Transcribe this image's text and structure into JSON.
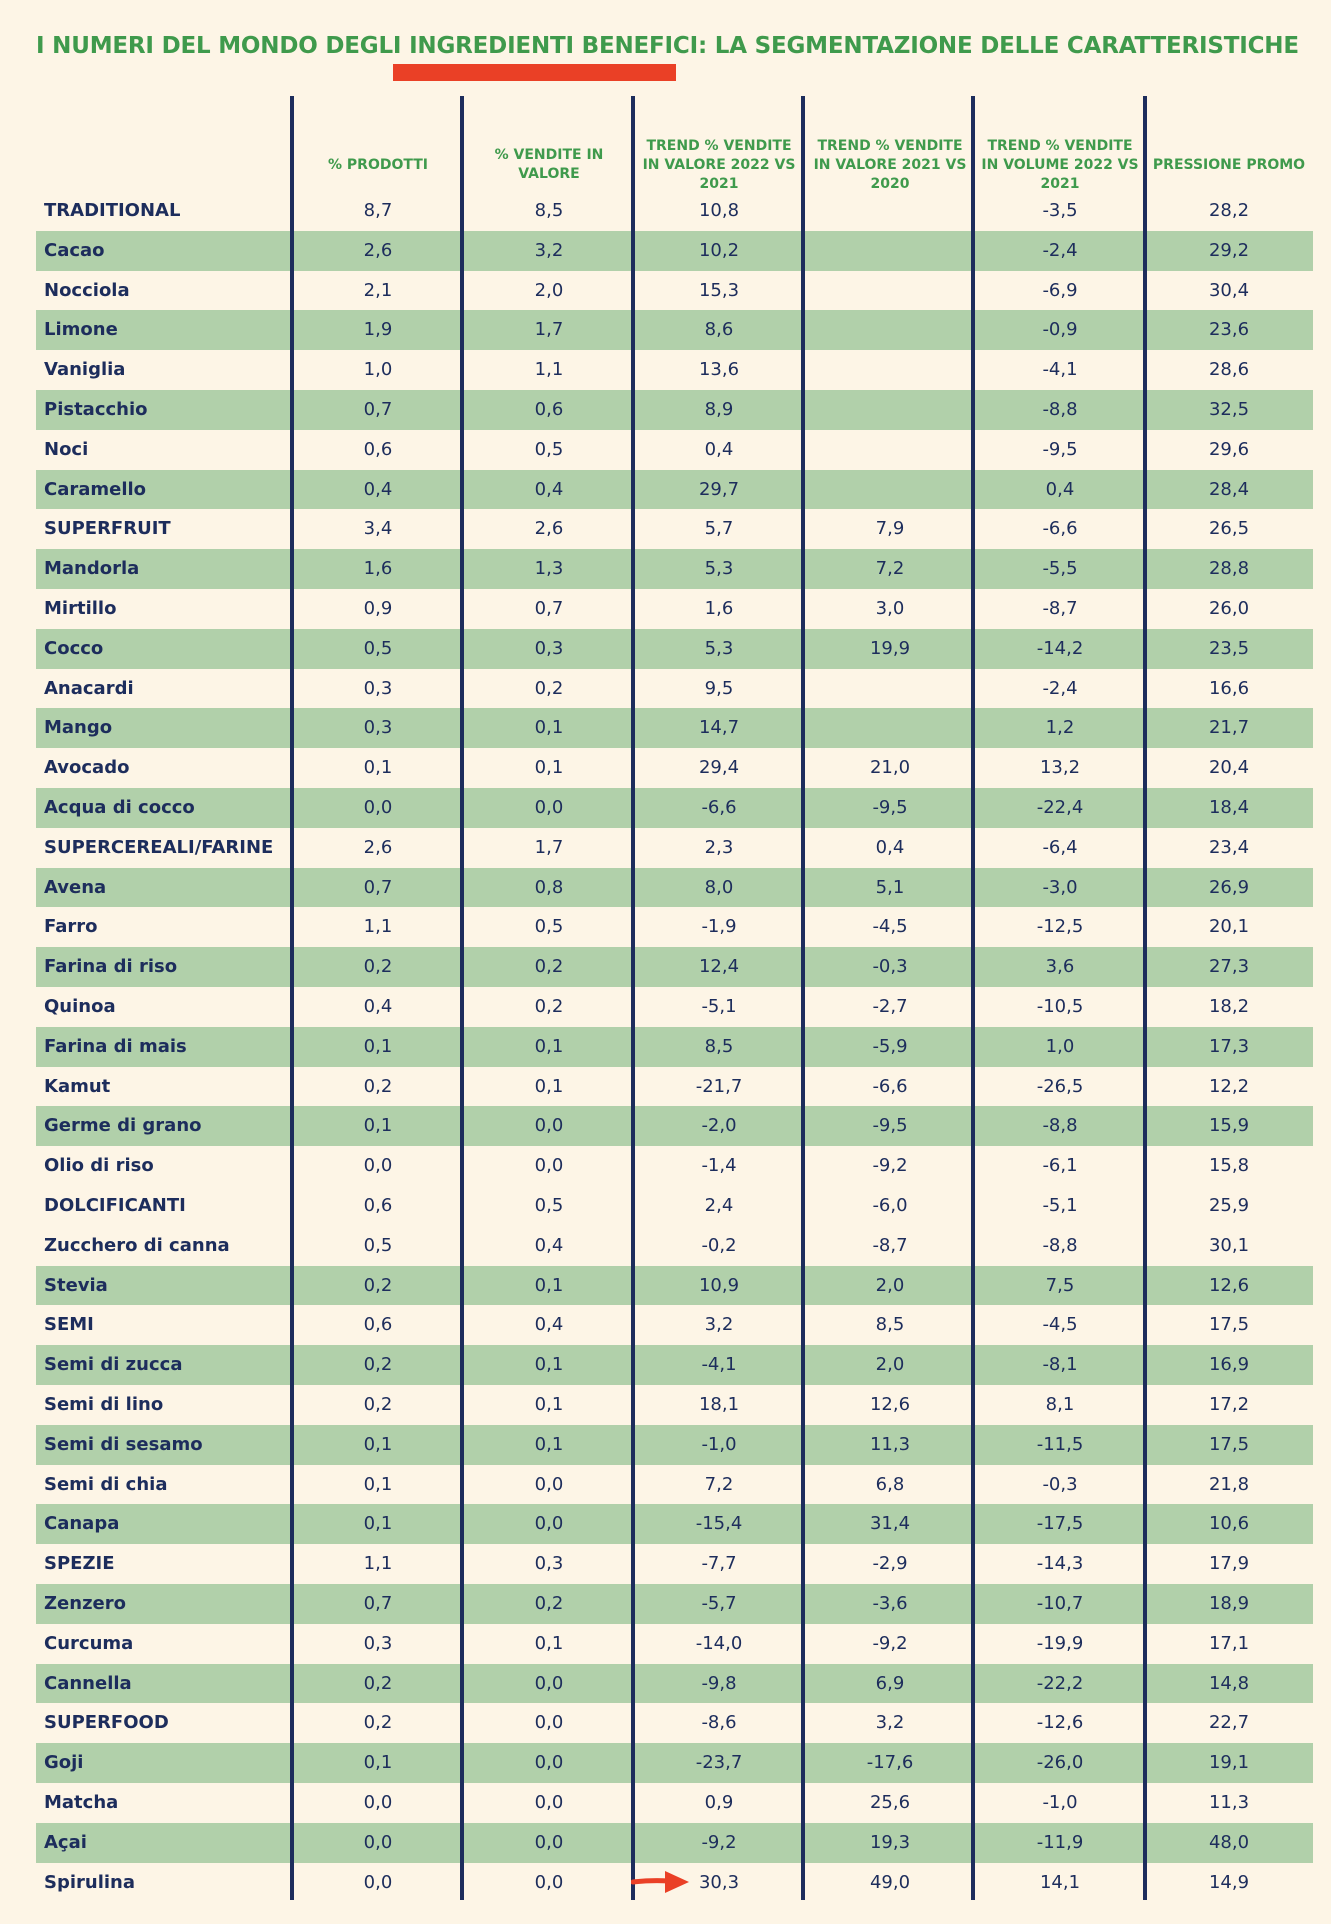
{
  "title": "I NUMERI DEL MONDO DEGLI INGREDIENTI BENEFICI: LA SEGMENTAZIONE DELLE CARATTERISTICHE",
  "columns": [
    "% PRODOTTI",
    "% VENDITE IN VALORE",
    "TREND % VENDITE IN VALORE 2022 VS 2021",
    "TREND % VENDITE IN VALORE 2021 VS 2020",
    "TREND % VENDITE IN VOLUME 2022 VS 2021",
    "PRESSIONE PROMO"
  ],
  "colors": {
    "category_row": "#f7d54a",
    "alt_row": "#b1d0aa",
    "title_green": "#3f9a4c",
    "accent_red": "#ea4026",
    "navy": "#1d2d5c",
    "background": "#fdf5e6"
  },
  "rows": [
    {
      "name": "TRADITIONAL",
      "type": "category",
      "values": [
        "8,7",
        "8,5",
        "10,8",
        "",
        "-3,5",
        "28,2"
      ]
    },
    {
      "name": "Cacao",
      "type": "sub",
      "values": [
        "2,6",
        "3,2",
        "10,2",
        "",
        "-2,4",
        "29,2"
      ]
    },
    {
      "name": "Nocciola",
      "type": "plain",
      "values": [
        "2,1",
        "2,0",
        "15,3",
        "",
        "-6,9",
        "30,4"
      ]
    },
    {
      "name": "Limone",
      "type": "sub",
      "values": [
        "1,9",
        "1,7",
        "8,6",
        "",
        "-0,9",
        "23,6"
      ]
    },
    {
      "name": "Vaniglia",
      "type": "plain",
      "values": [
        "1,0",
        "1,1",
        "13,6",
        "",
        "-4,1",
        "28,6"
      ]
    },
    {
      "name": "Pistacchio",
      "type": "sub",
      "values": [
        "0,7",
        "0,6",
        "8,9",
        "",
        "-8,8",
        "32,5"
      ]
    },
    {
      "name": "Noci",
      "type": "plain",
      "values": [
        "0,6",
        "0,5",
        "0,4",
        "",
        "-9,5",
        "29,6"
      ]
    },
    {
      "name": "Caramello",
      "type": "sub",
      "values": [
        "0,4",
        "0,4",
        "29,7",
        "",
        "0,4",
        "28,4"
      ]
    },
    {
      "name": "SUPERFRUIT",
      "type": "category",
      "values": [
        "3,4",
        "2,6",
        "5,7",
        "7,9",
        "-6,6",
        "26,5"
      ]
    },
    {
      "name": "Mandorla",
      "type": "sub",
      "values": [
        "1,6",
        "1,3",
        "5,3",
        "7,2",
        "-5,5",
        "28,8"
      ]
    },
    {
      "name": "Mirtillo",
      "type": "plain",
      "values": [
        "0,9",
        "0,7",
        "1,6",
        "3,0",
        "-8,7",
        "26,0"
      ]
    },
    {
      "name": "Cocco",
      "type": "sub",
      "values": [
        "0,5",
        "0,3",
        "5,3",
        "19,9",
        "-14,2",
        "23,5"
      ]
    },
    {
      "name": "Anacardi",
      "type": "plain",
      "values": [
        "0,3",
        "0,2",
        "9,5",
        "",
        "-2,4",
        "16,6"
      ]
    },
    {
      "name": "Mango",
      "type": "sub",
      "values": [
        "0,3",
        "0,1",
        "14,7",
        "",
        "1,2",
        "21,7"
      ]
    },
    {
      "name": "Avocado",
      "type": "plain",
      "values": [
        "0,1",
        "0,1",
        "29,4",
        "21,0",
        "13,2",
        "20,4"
      ]
    },
    {
      "name": "Acqua di cocco",
      "type": "sub",
      "values": [
        "0,0",
        "0,0",
        "-6,6",
        "-9,5",
        "-22,4",
        "18,4"
      ]
    },
    {
      "name": "SUPERCEREALI/FARINE",
      "type": "category",
      "values": [
        "2,6",
        "1,7",
        "2,3",
        "0,4",
        "-6,4",
        "23,4"
      ]
    },
    {
      "name": "Avena",
      "type": "sub",
      "values": [
        "0,7",
        "0,8",
        "8,0",
        "5,1",
        "-3,0",
        "26,9"
      ]
    },
    {
      "name": "Farro",
      "type": "plain",
      "values": [
        "1,1",
        "0,5",
        "-1,9",
        "-4,5",
        "-12,5",
        "20,1"
      ]
    },
    {
      "name": "Farina di riso",
      "type": "sub",
      "values": [
        "0,2",
        "0,2",
        "12,4",
        "-0,3",
        "3,6",
        "27,3"
      ]
    },
    {
      "name": "Quinoa",
      "type": "plain",
      "values": [
        "0,4",
        "0,2",
        "-5,1",
        "-2,7",
        "-10,5",
        "18,2"
      ]
    },
    {
      "name": "Farina di mais",
      "type": "sub",
      "values": [
        "0,1",
        "0,1",
        "8,5",
        "-5,9",
        "1,0",
        "17,3"
      ]
    },
    {
      "name": "Kamut",
      "type": "plain",
      "values": [
        "0,2",
        "0,1",
        "-21,7",
        "-6,6",
        "-26,5",
        "12,2"
      ]
    },
    {
      "name": "Germe di grano",
      "type": "sub",
      "values": [
        "0,1",
        "0,0",
        "-2,0",
        "-9,5",
        "-8,8",
        "15,9"
      ]
    },
    {
      "name": "Olio di riso",
      "type": "plain",
      "values": [
        "0,0",
        "0,0",
        "-1,4",
        "-9,2",
        "-6,1",
        "15,8"
      ]
    },
    {
      "name": "DOLCIFICANTI",
      "type": "category",
      "values": [
        "0,6",
        "0,5",
        "2,4",
        "-6,0",
        "-5,1",
        "25,9"
      ]
    },
    {
      "name": "Zucchero di canna",
      "type": "plain",
      "values": [
        "0,5",
        "0,4",
        "-0,2",
        "-8,7",
        "-8,8",
        "30,1"
      ]
    },
    {
      "name": "Stevia",
      "type": "sub",
      "values": [
        "0,2",
        "0,1",
        "10,9",
        "2,0",
        "7,5",
        "12,6"
      ]
    },
    {
      "name": "SEMI",
      "type": "category",
      "values": [
        "0,6",
        "0,4",
        "3,2",
        "8,5",
        "-4,5",
        "17,5"
      ]
    },
    {
      "name": "Semi di zucca",
      "type": "sub",
      "values": [
        "0,2",
        "0,1",
        "-4,1",
        "2,0",
        "-8,1",
        "16,9"
      ]
    },
    {
      "name": "Semi di lino",
      "type": "plain",
      "values": [
        "0,2",
        "0,1",
        "18,1",
        "12,6",
        "8,1",
        "17,2"
      ]
    },
    {
      "name": "Semi di sesamo",
      "type": "sub",
      "values": [
        "0,1",
        "0,1",
        "-1,0",
        "11,3",
        "-11,5",
        "17,5"
      ]
    },
    {
      "name": "Semi di chia",
      "type": "plain",
      "values": [
        "0,1",
        "0,0",
        "7,2",
        "6,8",
        "-0,3",
        "21,8"
      ]
    },
    {
      "name": "Canapa",
      "type": "sub",
      "values": [
        "0,1",
        "0,0",
        "-15,4",
        "31,4",
        "-17,5",
        "10,6"
      ]
    },
    {
      "name": "SPEZIE",
      "type": "category",
      "values": [
        "1,1",
        "0,3",
        "-7,7",
        "-2,9",
        "-14,3",
        "17,9"
      ]
    },
    {
      "name": "Zenzero",
      "type": "sub",
      "values": [
        "0,7",
        "0,2",
        "-5,7",
        "-3,6",
        "-10,7",
        "18,9"
      ]
    },
    {
      "name": "Curcuma",
      "type": "plain",
      "values": [
        "0,3",
        "0,1",
        "-14,0",
        "-9,2",
        "-19,9",
        "17,1"
      ]
    },
    {
      "name": "Cannella",
      "type": "sub",
      "values": [
        "0,2",
        "0,0",
        "-9,8",
        "6,9",
        "-22,2",
        "14,8"
      ]
    },
    {
      "name": "SUPERFOOD",
      "type": "category",
      "values": [
        "0,2",
        "0,0",
        "-8,6",
        "3,2",
        "-12,6",
        "22,7"
      ]
    },
    {
      "name": "Goji",
      "type": "sub",
      "values": [
        "0,1",
        "0,0",
        "-23,7",
        "-17,6",
        "-26,0",
        "19,1"
      ]
    },
    {
      "name": "Matcha",
      "type": "plain",
      "values": [
        "0,0",
        "0,0",
        "0,9",
        "25,6",
        "-1,0",
        "11,3"
      ]
    },
    {
      "name": "Açai",
      "type": "sub",
      "values": [
        "0,0",
        "0,0",
        "-9,2",
        "19,3",
        "-11,9",
        "48,0"
      ]
    },
    {
      "name": "Spirulina",
      "type": "plain",
      "values": [
        "0,0",
        "0,0",
        "30,3",
        "49,0",
        "14,1",
        "14,9"
      ]
    }
  ],
  "highlight_arrow_icon": "right-arrow-icon"
}
